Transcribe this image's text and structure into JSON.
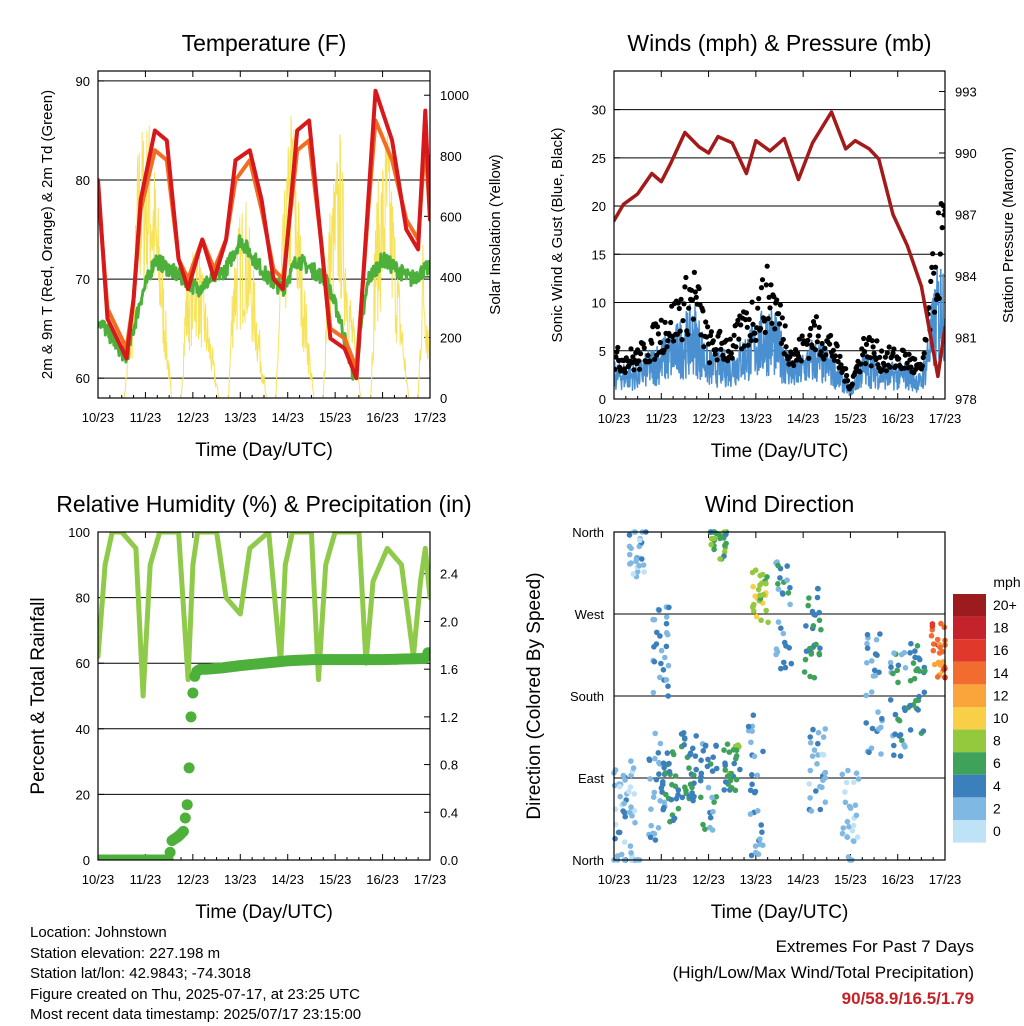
{
  "colors": {
    "temp2m": "#d7191c",
    "temp9m": "#f26d21",
    "dewpoint": "#4db03a",
    "solar": "#f7e35b",
    "gust": "#000000",
    "wind": "#4a90d0",
    "pressure": "#a31a1a",
    "rh": "#8fca4b",
    "precip": "#4db03a"
  },
  "speed_colorbar": {
    "title": "mph",
    "labels": [
      "20+",
      "18",
      "16",
      "14",
      "12",
      "10",
      "8",
      "6",
      "4",
      "2",
      "0"
    ],
    "colors": [
      "#9b1b1e",
      "#c4232b",
      "#e0392b",
      "#f26c30",
      "#f9a53c",
      "#f8cf47",
      "#94c93d",
      "#3ea25a",
      "#3c7fbd",
      "#7fb8e3",
      "#bfe3f6"
    ]
  },
  "chart_data": [
    {
      "id": "temperature",
      "type": "line",
      "title": "Temperature (F)",
      "xlabel": "Time (Day/UTC)",
      "ylabel": "2m & 9m T (Red, Orange) & 2m Td (Green)",
      "y2label": "Solar Insolation (Yellow)",
      "xticks": [
        "10/23",
        "11/23",
        "12/23",
        "13/23",
        "14/23",
        "15/23",
        "16/23",
        "17/23"
      ],
      "ylim": [
        58,
        91
      ],
      "yticks": [
        60,
        70,
        80,
        90
      ],
      "y2lim": [
        0,
        1080
      ],
      "y2ticks": [
        0,
        200,
        400,
        600,
        800,
        1000
      ],
      "series": [
        {
          "key": "temp2m",
          "x": [
            0,
            0.2,
            0.4,
            0.6,
            0.75,
            0.9,
            1.2,
            1.45,
            1.7,
            1.9,
            2.2,
            2.45,
            2.7,
            2.9,
            3.2,
            3.45,
            3.7,
            3.9,
            4.2,
            4.45,
            4.7,
            4.9,
            5.2,
            5.45,
            5.7,
            5.85,
            6.2,
            6.5,
            6.75,
            6.9,
            7.0
          ],
          "y": [
            80,
            66,
            64,
            62,
            68,
            78,
            85,
            84,
            72,
            69,
            74,
            70,
            74,
            82,
            83,
            78,
            70,
            69,
            85,
            86,
            74,
            64,
            63,
            60,
            78,
            89,
            84,
            75,
            73,
            87,
            76
          ]
        },
        {
          "key": "temp9m",
          "x": [
            0,
            0.2,
            0.4,
            0.6,
            0.75,
            0.9,
            1.2,
            1.45,
            1.7,
            1.9,
            2.2,
            2.45,
            2.7,
            2.9,
            3.2,
            3.45,
            3.7,
            3.9,
            4.2,
            4.45,
            4.7,
            4.9,
            5.2,
            5.45,
            5.7,
            5.85,
            6.2,
            6.5,
            6.75,
            6.9,
            7.0
          ],
          "y": [
            79,
            67,
            65,
            63,
            68,
            77,
            83,
            82,
            72,
            70,
            74,
            71,
            74,
            80,
            82,
            77,
            71,
            70,
            83,
            84,
            74,
            65,
            64,
            61,
            77,
            86,
            82,
            76,
            74,
            84,
            76
          ]
        },
        {
          "key": "dewpoint",
          "x": [
            0,
            0.3,
            0.6,
            0.9,
            1.2,
            1.5,
            1.8,
            2.1,
            2.4,
            2.7,
            3.0,
            3.3,
            3.6,
            3.9,
            4.2,
            4.5,
            4.8,
            5.1,
            5.4,
            5.7,
            6.0,
            6.3,
            6.6,
            6.9,
            7.0
          ],
          "y": [
            66,
            64,
            62,
            68,
            72,
            71,
            70,
            69,
            70,
            71,
            74,
            72,
            70,
            69,
            72,
            71,
            70,
            66,
            60,
            70,
            72,
            71,
            70,
            71,
            71
          ]
        },
        {
          "key": "solar",
          "axis": "y2",
          "x": [
            0.1,
            0.55,
            0.75,
            0.85,
            1.1,
            1.3,
            1.55,
            1.75,
            1.85,
            2.1,
            2.3,
            2.55,
            2.75,
            2.85,
            3.1,
            3.3,
            3.55,
            3.75,
            3.85,
            4.1,
            4.3,
            4.55,
            4.75,
            4.85,
            5.1,
            5.3,
            5.55,
            5.75,
            5.85,
            6.1,
            6.3,
            6.55,
            6.75,
            6.85,
            7.0
          ],
          "y": [
            0,
            0,
            400,
            900,
            950,
            600,
            0,
            0,
            400,
            550,
            300,
            0,
            0,
            500,
            700,
            400,
            0,
            0,
            500,
            1050,
            500,
            0,
            0,
            600,
            900,
            400,
            0,
            0,
            650,
            950,
            500,
            0,
            0,
            550,
            200
          ]
        }
      ]
    },
    {
      "id": "winds",
      "type": "scatter",
      "title": "Winds (mph) & Pressure (mb)",
      "xlabel": "Time (Day/UTC)",
      "ylabel": "Sonic Wind & Gust (Blue, Black)",
      "y2label": "Station Pressure (Maroon)",
      "xticks": [
        "10/23",
        "11/23",
        "12/23",
        "13/23",
        "14/23",
        "15/23",
        "16/23",
        "17/23"
      ],
      "ylim": [
        0,
        34
      ],
      "yticks": [
        0,
        5,
        10,
        15,
        20,
        25,
        30
      ],
      "y2lim": [
        978,
        994
      ],
      "y2ticks": [
        978,
        981,
        984,
        987,
        990,
        993
      ],
      "series": [
        {
          "key": "pressure",
          "axis": "y2",
          "x": [
            0,
            0.2,
            0.5,
            0.8,
            1.0,
            1.2,
            1.5,
            1.8,
            2.0,
            2.2,
            2.5,
            2.8,
            3.0,
            3.3,
            3.6,
            3.9,
            4.2,
            4.6,
            4.9,
            5.1,
            5.4,
            5.6,
            5.9,
            6.2,
            6.5,
            6.7,
            6.85,
            7.0
          ],
          "y": [
            986.7,
            987.5,
            988.0,
            989.0,
            988.6,
            989.5,
            991.0,
            990.3,
            990.0,
            990.8,
            990.5,
            989.0,
            990.6,
            990.1,
            990.7,
            988.7,
            990.5,
            992.0,
            990.2,
            990.6,
            990.2,
            989.7,
            987.0,
            985.5,
            983.5,
            981.0,
            979.1,
            981.5
          ]
        }
      ]
    },
    {
      "id": "humidity",
      "type": "line",
      "title": "Relative Humidity (%) & Precipitation (in)",
      "xlabel": "Time (Day/UTC)",
      "ylabel": "Percent & Total Rainfall",
      "xticks": [
        "10/23",
        "11/23",
        "12/23",
        "13/23",
        "14/23",
        "15/23",
        "16/23",
        "17/23"
      ],
      "ylim": [
        0,
        100
      ],
      "yticks": [
        0,
        20,
        40,
        60,
        80,
        100
      ],
      "y2lim": [
        0,
        2.75
      ],
      "y2ticks": [
        "0.0",
        "0.4",
        "0.8",
        "1.2",
        "1.6",
        "2.0",
        "2.4"
      ],
      "series": [
        {
          "key": "rh",
          "x": [
            0,
            0.15,
            0.3,
            0.5,
            0.8,
            0.95,
            1.1,
            1.3,
            1.7,
            1.9,
            2.0,
            2.1,
            2.5,
            2.7,
            3.0,
            3.2,
            3.6,
            3.85,
            3.95,
            4.1,
            4.5,
            4.65,
            4.8,
            5.0,
            5.5,
            5.65,
            5.8,
            6.1,
            6.4,
            6.65,
            6.8,
            6.9,
            7.0
          ],
          "y": [
            62,
            90,
            100,
            100,
            95,
            50,
            90,
            100,
            100,
            55,
            90,
            100,
            100,
            80,
            75,
            95,
            100,
            60,
            90,
            100,
            100,
            55,
            90,
            100,
            100,
            60,
            85,
            95,
            90,
            62,
            85,
            95,
            80
          ]
        },
        {
          "key": "precip",
          "axis": "y2",
          "x": [
            0,
            0.5,
            1.0,
            1.5,
            1.55,
            1.7,
            1.8,
            1.9,
            1.95,
            2.0,
            2.02,
            2.08,
            2.15,
            2.3,
            2.6,
            3.0,
            3.5,
            4.0,
            4.5,
            5.0,
            6.0,
            6.9,
            7.0
          ],
          "y": [
            0,
            0,
            0,
            0,
            0.16,
            0.2,
            0.24,
            0.52,
            1.15,
            1.4,
            1.52,
            1.58,
            1.6,
            1.6,
            1.61,
            1.63,
            1.65,
            1.67,
            1.68,
            1.68,
            1.68,
            1.69,
            1.77
          ]
        }
      ]
    },
    {
      "id": "direction",
      "type": "scatter",
      "title": "Wind Direction",
      "xlabel": "Time (Day/UTC)",
      "ylabel": "Direction (Colored By Speed)",
      "xticks": [
        "10/23",
        "11/23",
        "12/23",
        "13/23",
        "14/23",
        "15/23",
        "16/23",
        "17/23"
      ],
      "ylim": [
        0,
        360
      ],
      "yticks": [
        "North",
        "East",
        "South",
        "West",
        "North"
      ]
    }
  ],
  "info": {
    "location": "Location: Johnstown",
    "elevation": "Station elevation: 227.198 m",
    "latlon": "Station lat/lon: 42.9843; -74.3018",
    "created": "Figure created on Thu, 2025-07-17, at 23:25 UTC",
    "recent": "Most recent data timestamp: 2025/07/17 23:15:00"
  },
  "extremes": {
    "line1": "Extremes For Past 7 Days",
    "line2": "(High/Low/Max Wind/Total Precipitation)",
    "values": "90/58.9/16.5/1.79"
  }
}
